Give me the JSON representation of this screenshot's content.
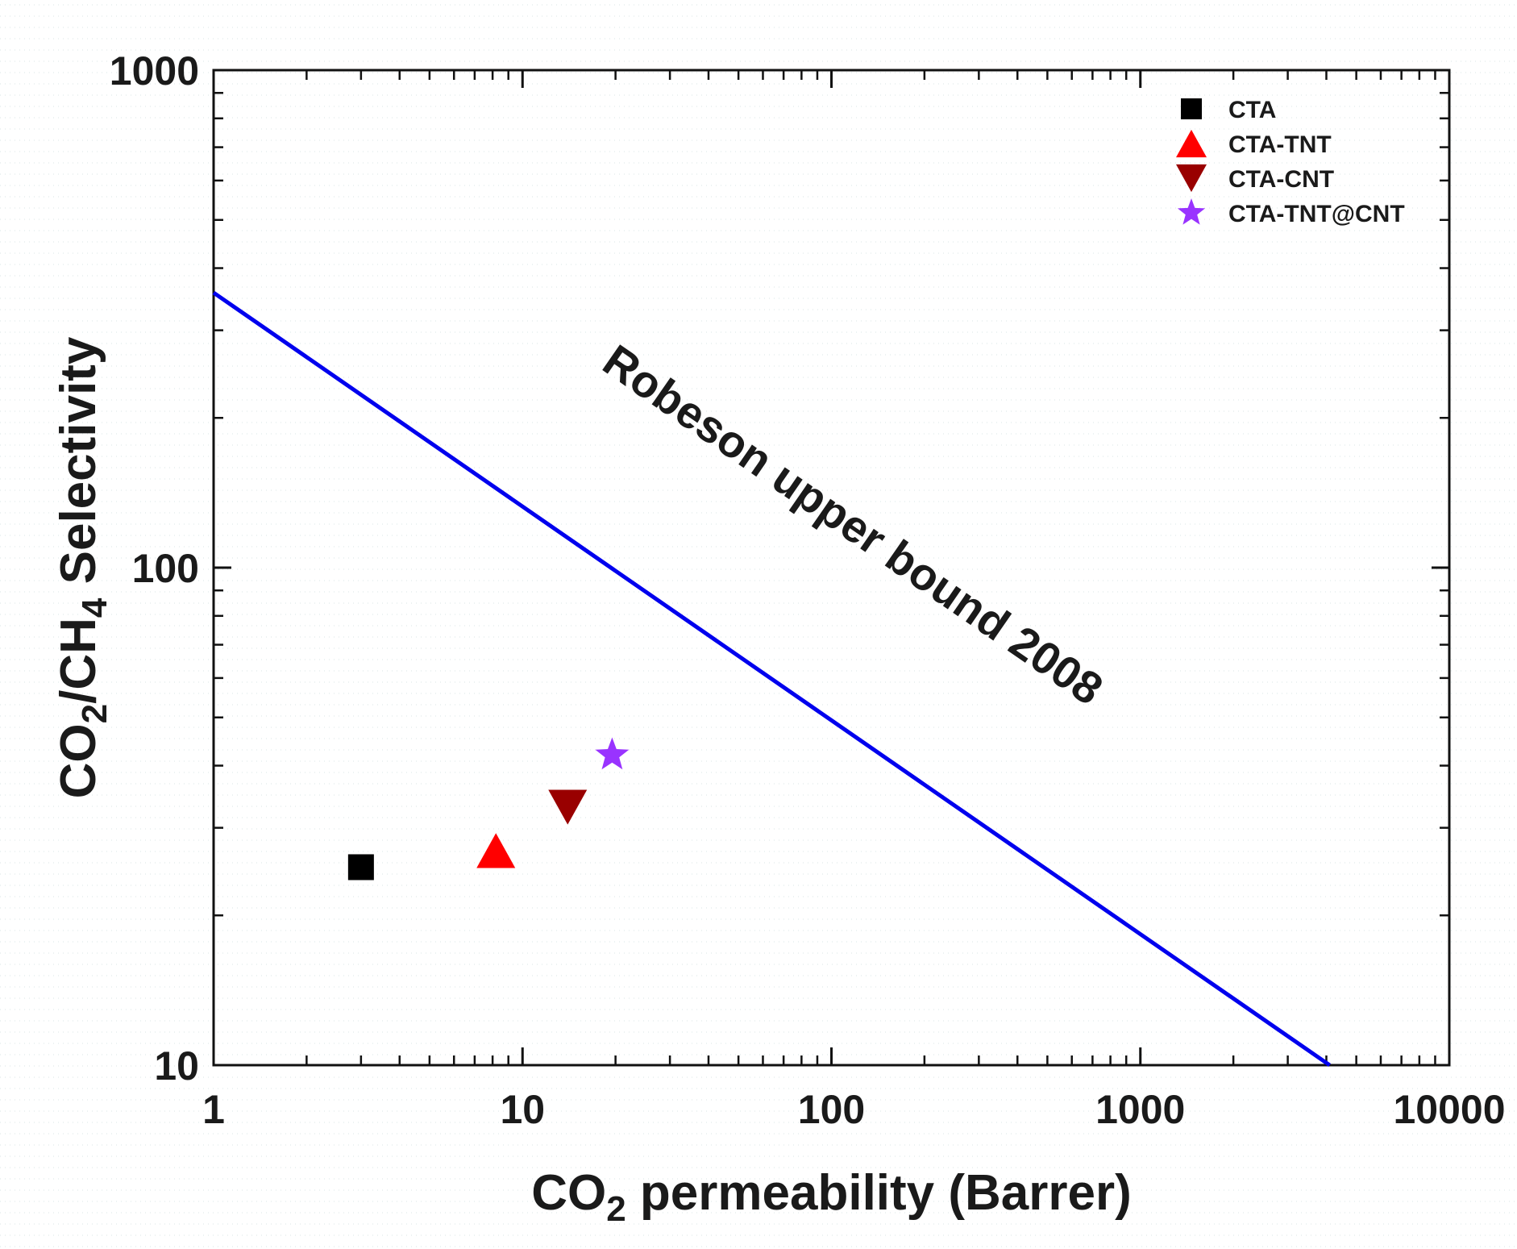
{
  "chart_data": {
    "type": "scatter",
    "title": "",
    "xlabel": {
      "prefix": "CO",
      "sub": "2",
      "suffix": " permeability (Barrer)"
    },
    "ylabel": {
      "p1": "CO",
      "s1": "2",
      "p2": "/CH",
      "s2": "4",
      "p3": " Selectivity"
    },
    "xscale": "log",
    "yscale": "log",
    "xlim": [
      1,
      10000
    ],
    "ylim": [
      10,
      1000
    ],
    "xticks": [
      {
        "value": 1,
        "label": "1"
      },
      {
        "value": 10,
        "label": "10"
      },
      {
        "value": 100,
        "label": "100"
      },
      {
        "value": 1000,
        "label": "1000"
      },
      {
        "value": 10000,
        "label": "10000"
      }
    ],
    "yticks": [
      {
        "value": 10,
        "label": "10"
      },
      {
        "value": 100,
        "label": "100"
      },
      {
        "value": 1000,
        "label": "1000"
      }
    ],
    "legend_position": "top-right",
    "series": [
      {
        "name": "CTA",
        "marker": "square",
        "color": "#000000",
        "x": 3.0,
        "y": 25.0
      },
      {
        "name": "CTA-TNT",
        "marker": "triangle-up",
        "color": "#ff0000",
        "x": 8.2,
        "y": 27.0
      },
      {
        "name": "CTA-CNT",
        "marker": "triangle-down",
        "color": "#990000",
        "x": 14.0,
        "y": 33.0
      },
      {
        "name": "CTA-TNT@CNT",
        "marker": "star",
        "color": "#9933ff",
        "x": 19.5,
        "y": 42.0
      }
    ],
    "lines": [
      {
        "name": "Robeson upper bound 2008",
        "color": "#0000ee",
        "x": [
          1,
          4100
        ],
        "y": [
          357,
          10
        ]
      }
    ],
    "annotations": [
      {
        "text": "Robeson upper bound 2008",
        "x": 110,
        "y": 115
      }
    ]
  }
}
